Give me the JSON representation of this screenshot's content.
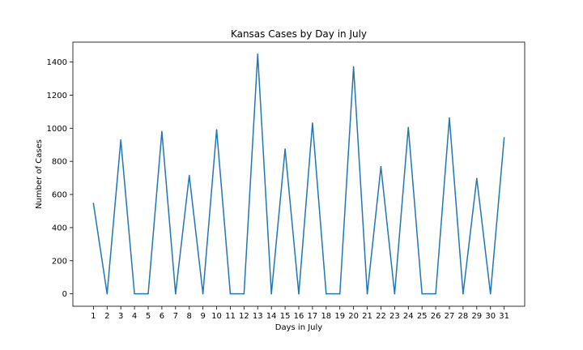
{
  "chart_data": {
    "type": "line",
    "title": "Kansas Cases by Day in July",
    "xlabel": "Days in July",
    "ylabel": "Number of Cases",
    "x": [
      1,
      2,
      3,
      4,
      5,
      6,
      7,
      8,
      9,
      10,
      11,
      12,
      13,
      14,
      15,
      16,
      17,
      18,
      19,
      20,
      21,
      22,
      23,
      24,
      25,
      26,
      27,
      28,
      29,
      30,
      31
    ],
    "series": [
      {
        "values": [
          547,
          0,
          929,
          0,
          0,
          980,
          0,
          715,
          0,
          991,
          0,
          0,
          1447,
          0,
          874,
          0,
          1031,
          0,
          0,
          1370,
          0,
          768,
          0,
          1005,
          0,
          0,
          1062,
          0,
          697,
          0,
          943
        ],
        "color": "#1f77b4"
      }
    ],
    "xlim": [
      -0.5,
      32.5
    ],
    "ylim": [
      -75,
      1520
    ],
    "yticks": [
      0,
      200,
      400,
      600,
      800,
      1000,
      1200,
      1400
    ],
    "grid": false,
    "legend": "none"
  }
}
